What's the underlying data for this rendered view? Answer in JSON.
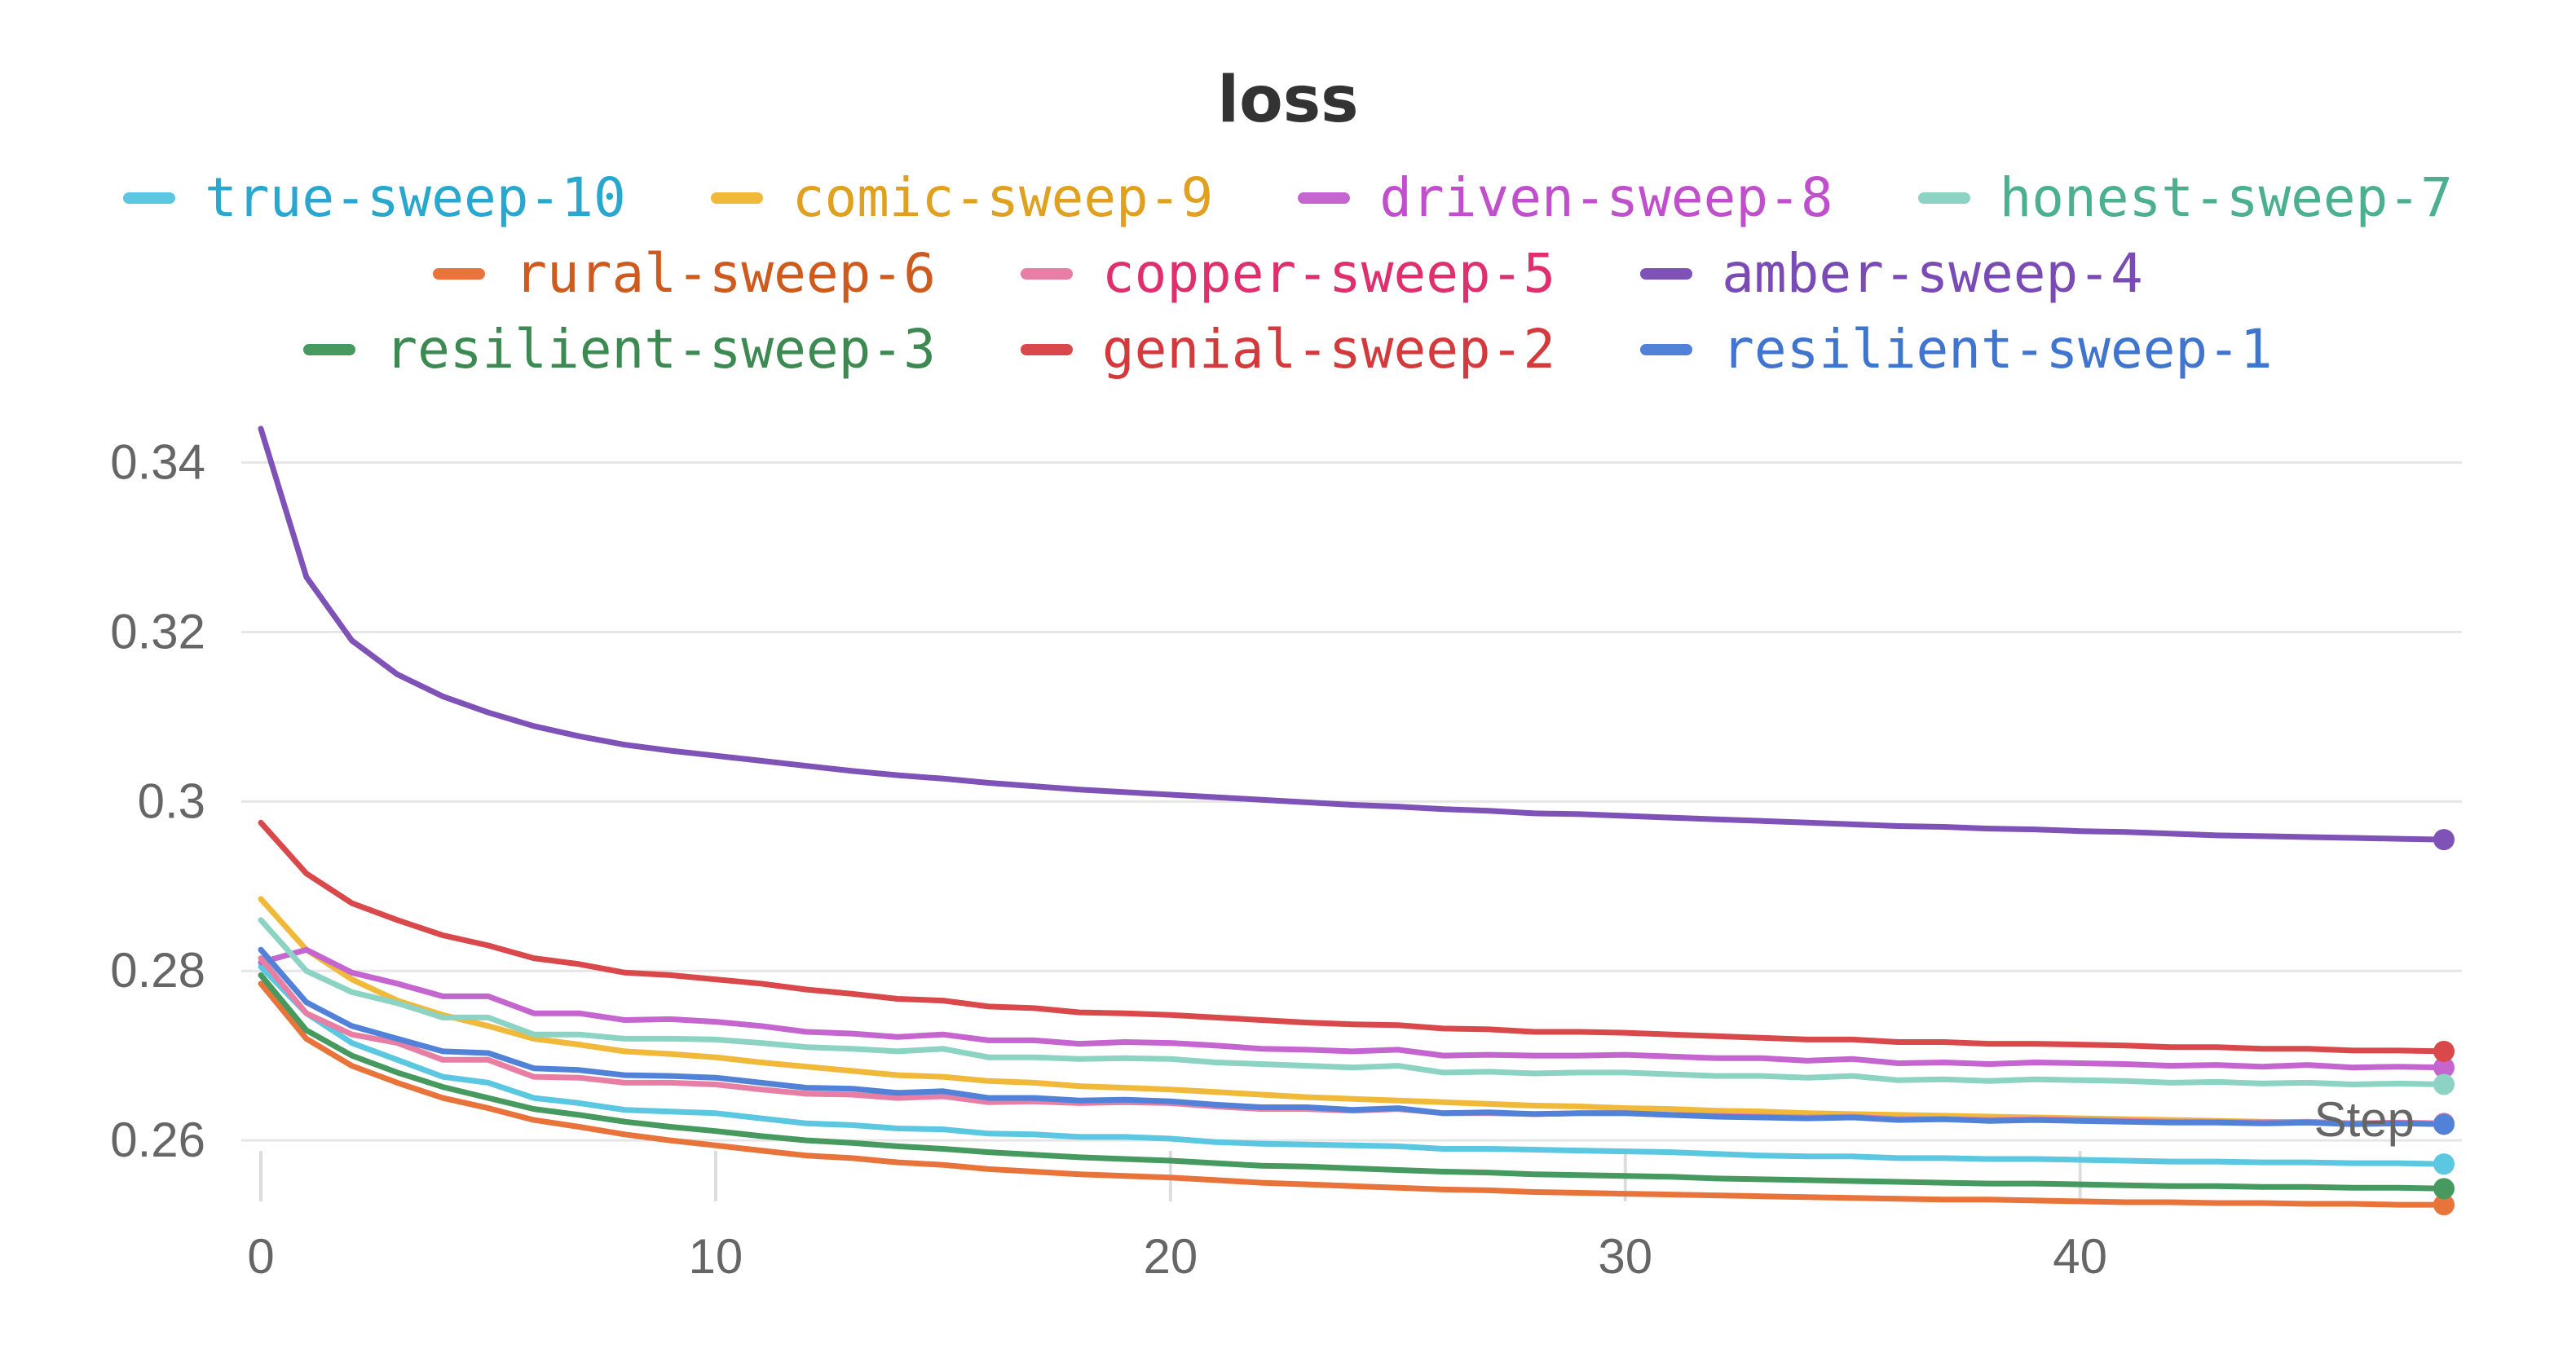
{
  "chart_data": {
    "type": "line",
    "title": "loss",
    "xlabel": "Step",
    "ylabel": "",
    "xlim": [
      0,
      48
    ],
    "ylim": [
      0.2526,
      0.3465
    ],
    "x_ticks": [
      0,
      10,
      20,
      30,
      40
    ],
    "x_tick_labels": [
      "0",
      "10",
      "20",
      "30",
      "40"
    ],
    "y_ticks": [
      0.26,
      0.28,
      0.3,
      0.32,
      0.34
    ],
    "y_tick_labels": [
      "0.26",
      "0.28",
      "0.3",
      "0.32",
      "0.34"
    ],
    "grid": true,
    "legend_placement": "top",
    "x": [
      0,
      1,
      2,
      3,
      4,
      5,
      6,
      7,
      8,
      9,
      10,
      11,
      12,
      13,
      14,
      15,
      16,
      17,
      18,
      19,
      20,
      21,
      22,
      23,
      24,
      25,
      26,
      27,
      28,
      29,
      30,
      31,
      32,
      33,
      34,
      35,
      36,
      37,
      38,
      39,
      40,
      41,
      42,
      43,
      44,
      45,
      46,
      47,
      48
    ],
    "series": [
      {
        "name": "true-sweep-10",
        "color": "#5bc7e0",
        "text_color": "#2aa7cf",
        "values": [
          0.2805,
          0.275,
          0.2715,
          0.2695,
          0.2675,
          0.2668,
          0.265,
          0.2644,
          0.2636,
          0.2634,
          0.2632,
          0.2626,
          0.262,
          0.2618,
          0.2614,
          0.2613,
          0.2608,
          0.2607,
          0.2604,
          0.2604,
          0.2602,
          0.2598,
          0.2596,
          0.2595,
          0.2594,
          0.2593,
          0.259,
          0.259,
          0.2589,
          0.2588,
          0.2587,
          0.2586,
          0.2584,
          0.2582,
          0.2581,
          0.2581,
          0.2579,
          0.2579,
          0.2578,
          0.2578,
          0.2577,
          0.2576,
          0.2575,
          0.2575,
          0.2574,
          0.2574,
          0.2573,
          0.2573,
          0.2572
        ]
      },
      {
        "name": "comic-sweep-9",
        "color": "#f0b93a",
        "text_color": "#e0a020",
        "values": [
          0.2885,
          0.2825,
          0.279,
          0.2765,
          0.2748,
          0.2735,
          0.272,
          0.2713,
          0.2705,
          0.2702,
          0.2698,
          0.2692,
          0.2687,
          0.2682,
          0.2677,
          0.2675,
          0.267,
          0.2668,
          0.2664,
          0.2662,
          0.266,
          0.2657,
          0.2654,
          0.2651,
          0.2649,
          0.2647,
          0.2645,
          0.2643,
          0.2641,
          0.264,
          0.2638,
          0.2637,
          0.2635,
          0.2634,
          0.2632,
          0.2631,
          0.263,
          0.2629,
          0.2628,
          0.2627,
          0.2626,
          0.2625,
          0.2624,
          0.2623,
          0.2622,
          0.2621,
          0.262,
          0.262,
          0.2619
        ]
      },
      {
        "name": "driven-sweep-8",
        "color": "#c565cf",
        "text_color": "#c04fcc",
        "values": [
          0.281,
          0.2825,
          0.2798,
          0.2785,
          0.277,
          0.277,
          0.275,
          0.275,
          0.2742,
          0.2743,
          0.274,
          0.2735,
          0.2728,
          0.2726,
          0.2722,
          0.2725,
          0.2718,
          0.2718,
          0.2714,
          0.2716,
          0.2715,
          0.2712,
          0.2708,
          0.2707,
          0.2705,
          0.2707,
          0.27,
          0.2701,
          0.27,
          0.27,
          0.2701,
          0.2699,
          0.2697,
          0.2697,
          0.2694,
          0.2696,
          0.2691,
          0.2692,
          0.269,
          0.2692,
          0.2691,
          0.269,
          0.2688,
          0.2689,
          0.2687,
          0.2689,
          0.2686,
          0.2687,
          0.2686
        ]
      },
      {
        "name": "honest-sweep-7",
        "color": "#8dd3c3",
        "text_color": "#4caf90",
        "values": [
          0.286,
          0.28,
          0.2775,
          0.2762,
          0.2745,
          0.2745,
          0.2725,
          0.2725,
          0.272,
          0.272,
          0.2719,
          0.2715,
          0.271,
          0.2708,
          0.2705,
          0.2708,
          0.2698,
          0.2698,
          0.2696,
          0.2697,
          0.2696,
          0.2692,
          0.269,
          0.2688,
          0.2686,
          0.2688,
          0.268,
          0.2681,
          0.2679,
          0.268,
          0.268,
          0.2678,
          0.2676,
          0.2676,
          0.2674,
          0.2676,
          0.2671,
          0.2672,
          0.267,
          0.2672,
          0.2671,
          0.267,
          0.2668,
          0.2669,
          0.2667,
          0.2668,
          0.2666,
          0.2667,
          0.2666
        ]
      },
      {
        "name": "rural-sweep-6",
        "color": "#e8743b",
        "text_color": "#cf5a1d",
        "values": [
          0.2785,
          0.272,
          0.2688,
          0.2668,
          0.265,
          0.2638,
          0.2624,
          0.2616,
          0.2607,
          0.26,
          0.2594,
          0.2588,
          0.2582,
          0.2579,
          0.2574,
          0.2571,
          0.2566,
          0.2563,
          0.256,
          0.2558,
          0.2556,
          0.2553,
          0.255,
          0.2548,
          0.2546,
          0.2544,
          0.2542,
          0.2541,
          0.2539,
          0.2538,
          0.2537,
          0.2536,
          0.2535,
          0.2534,
          0.2533,
          0.2532,
          0.2531,
          0.253,
          0.253,
          0.2529,
          0.2528,
          0.2527,
          0.2527,
          0.2526,
          0.2526,
          0.2525,
          0.2525,
          0.2524,
          0.2524
        ]
      },
      {
        "name": "copper-sweep-5",
        "color": "#e97ea5",
        "text_color": "#df2f6c",
        "values": [
          0.2815,
          0.275,
          0.2725,
          0.2715,
          0.2695,
          0.2695,
          0.2675,
          0.2674,
          0.2668,
          0.2668,
          0.2666,
          0.266,
          0.2655,
          0.2654,
          0.265,
          0.2652,
          0.2645,
          0.2646,
          0.2644,
          0.2645,
          0.2644,
          0.264,
          0.2637,
          0.2637,
          0.2635,
          0.2637,
          0.2632,
          0.2632,
          0.2631,
          0.2632,
          0.2632,
          0.263,
          0.2629,
          0.2628,
          0.2627,
          0.2628,
          0.2625,
          0.2625,
          0.2624,
          0.2625,
          0.2624,
          0.2623,
          0.2622,
          0.2622,
          0.2621,
          0.2622,
          0.262,
          0.2621,
          0.262
        ]
      },
      {
        "name": "amber-sweep-4",
        "color": "#7e52b6",
        "text_color": "#7b4bb5",
        "values": [
          0.344,
          0.3265,
          0.319,
          0.315,
          0.3124,
          0.3105,
          0.3089,
          0.3077,
          0.3067,
          0.306,
          0.3054,
          0.3048,
          0.3042,
          0.3036,
          0.3031,
          0.3027,
          0.3022,
          0.3018,
          0.3014,
          0.3011,
          0.3008,
          0.3005,
          0.3002,
          0.2999,
          0.2996,
          0.2994,
          0.2991,
          0.2989,
          0.2986,
          0.2985,
          0.2983,
          0.2981,
          0.2979,
          0.2977,
          0.2975,
          0.2973,
          0.2971,
          0.297,
          0.2968,
          0.2967,
          0.2965,
          0.2964,
          0.2962,
          0.296,
          0.2959,
          0.2958,
          0.2957,
          0.2956,
          0.2955
        ]
      },
      {
        "name": "resilient-sweep-3",
        "color": "#479a5f",
        "text_color": "#3c8a52",
        "values": [
          0.2795,
          0.273,
          0.27,
          0.268,
          0.2663,
          0.265,
          0.2637,
          0.263,
          0.2622,
          0.2616,
          0.2611,
          0.2605,
          0.26,
          0.2597,
          0.2593,
          0.259,
          0.2586,
          0.2583,
          0.258,
          0.2578,
          0.2576,
          0.2573,
          0.257,
          0.2569,
          0.2567,
          0.2565,
          0.2563,
          0.2562,
          0.256,
          0.2559,
          0.2558,
          0.2557,
          0.2555,
          0.2554,
          0.2553,
          0.2552,
          0.2551,
          0.255,
          0.2549,
          0.2549,
          0.2548,
          0.2547,
          0.2546,
          0.2546,
          0.2545,
          0.2545,
          0.2544,
          0.2544,
          0.2543
        ]
      },
      {
        "name": "genial-sweep-2",
        "color": "#d9494b",
        "text_color": "#d33a3c",
        "values": [
          0.2975,
          0.2915,
          0.288,
          0.286,
          0.2842,
          0.283,
          0.2815,
          0.2808,
          0.2798,
          0.2795,
          0.279,
          0.2785,
          0.2778,
          0.2773,
          0.2767,
          0.2765,
          0.2758,
          0.2756,
          0.2751,
          0.275,
          0.2748,
          0.2745,
          0.2742,
          0.2739,
          0.2737,
          0.2736,
          0.2732,
          0.2731,
          0.2728,
          0.2728,
          0.2727,
          0.2725,
          0.2723,
          0.2721,
          0.2719,
          0.2719,
          0.2716,
          0.2716,
          0.2714,
          0.2714,
          0.2713,
          0.2712,
          0.271,
          0.271,
          0.2708,
          0.2708,
          0.2706,
          0.2706,
          0.2705
        ]
      },
      {
        "name": "resilient-sweep-1",
        "color": "#5282d8",
        "text_color": "#3f74cf",
        "values": [
          0.2825,
          0.2763,
          0.2735,
          0.272,
          0.2705,
          0.2703,
          0.2685,
          0.2683,
          0.2677,
          0.2676,
          0.2674,
          0.2668,
          0.2662,
          0.2661,
          0.2656,
          0.2658,
          0.265,
          0.265,
          0.2647,
          0.2648,
          0.2646,
          0.2642,
          0.2639,
          0.2639,
          0.2636,
          0.2638,
          0.2632,
          0.2633,
          0.2631,
          0.2632,
          0.2632,
          0.263,
          0.2628,
          0.2627,
          0.2626,
          0.2627,
          0.2624,
          0.2625,
          0.2623,
          0.2624,
          0.2623,
          0.2622,
          0.2621,
          0.2621,
          0.262,
          0.2621,
          0.2619,
          0.262,
          0.2619
        ]
      }
    ]
  }
}
